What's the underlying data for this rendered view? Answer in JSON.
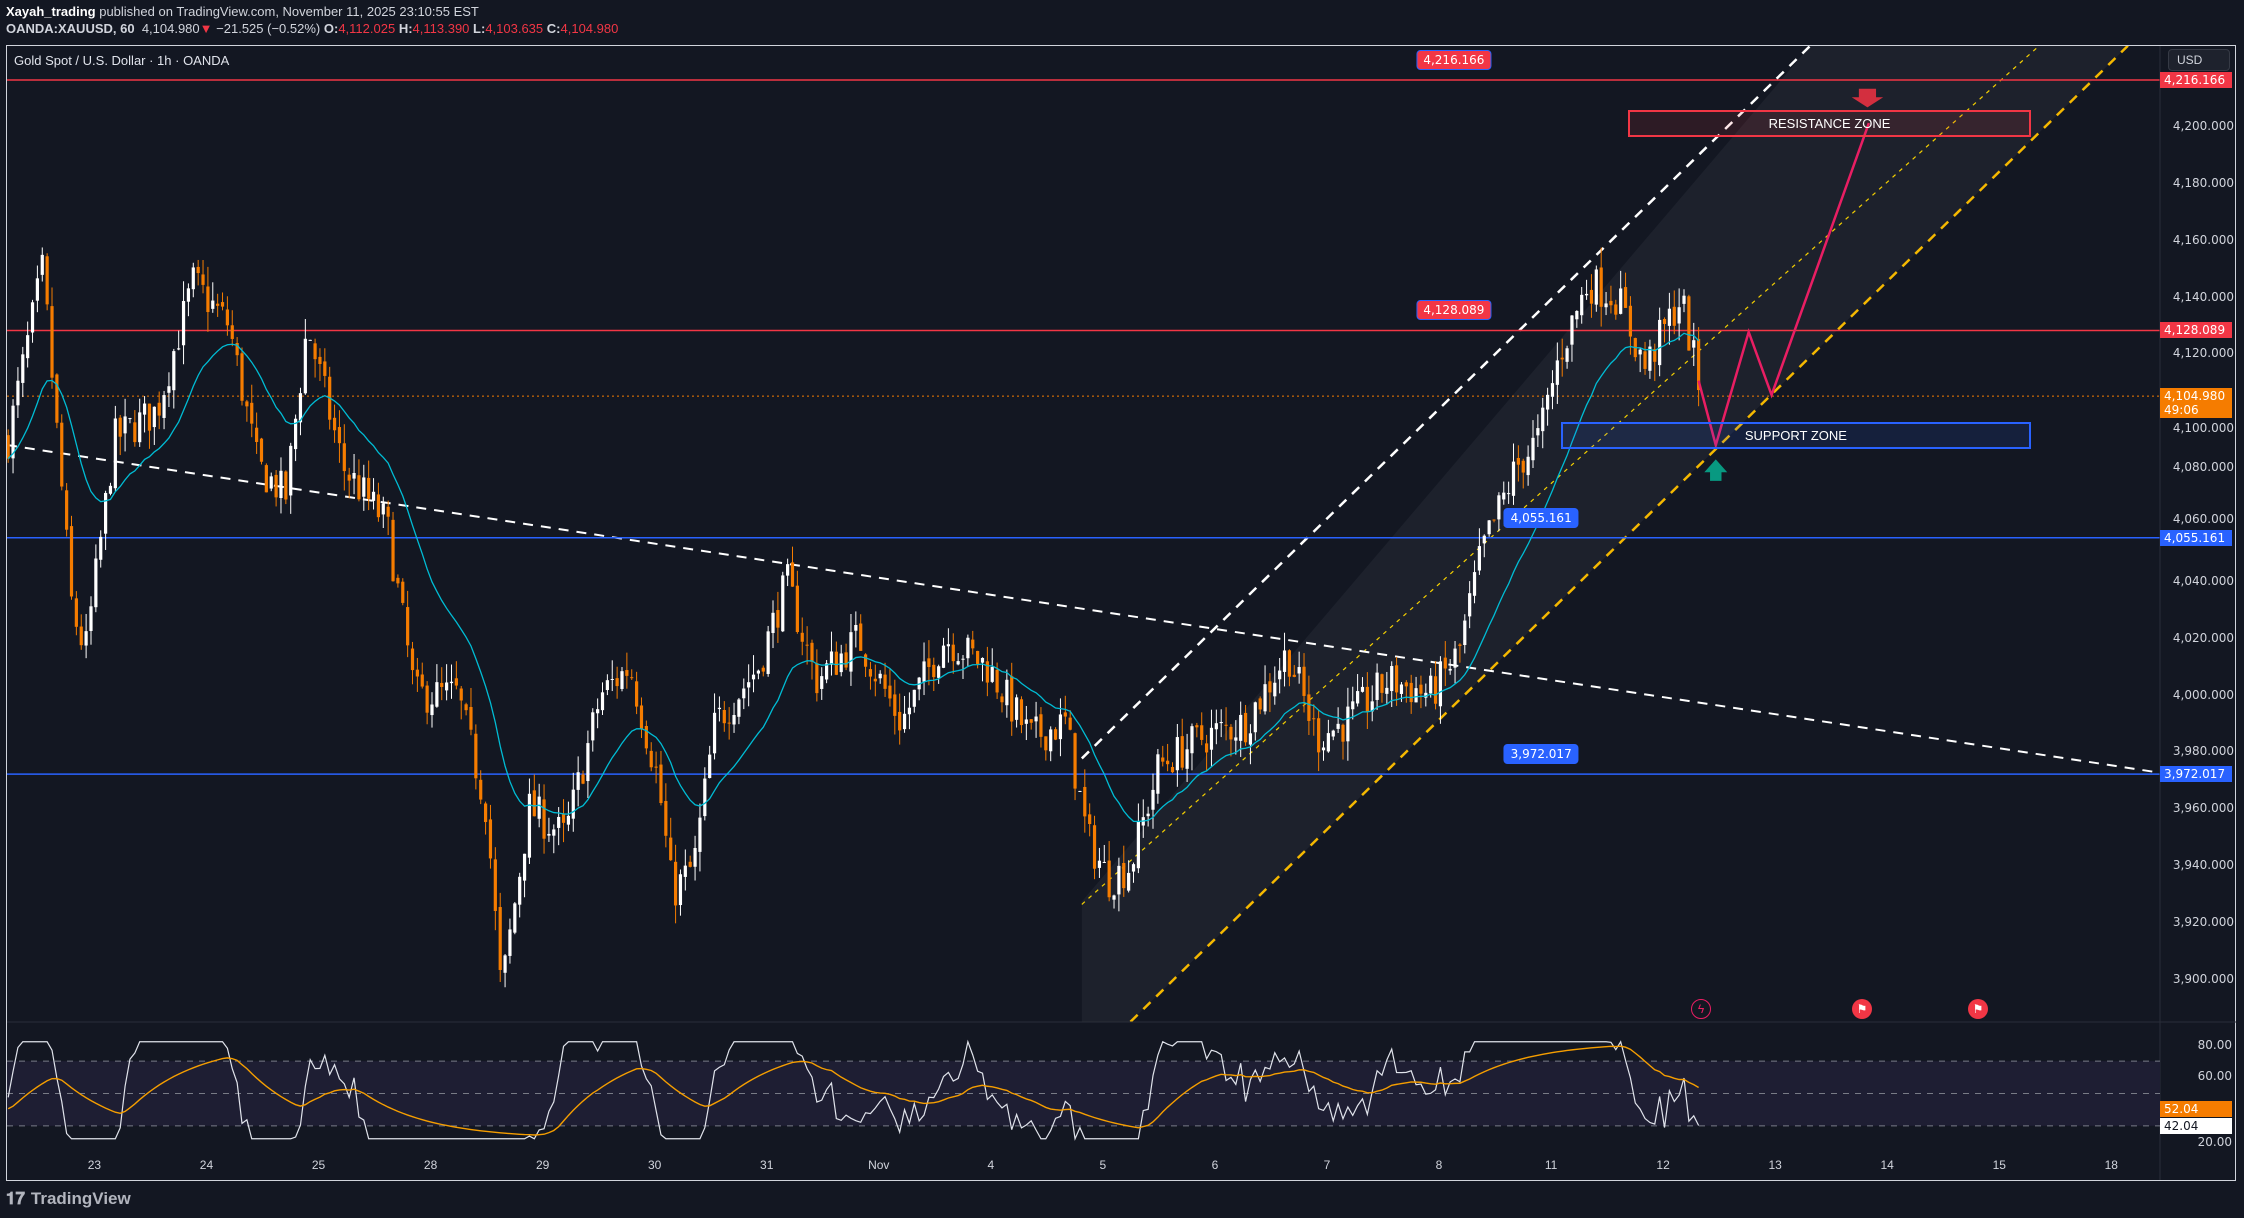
{
  "header": {
    "author": "Xayah_trading",
    "published": "published on TradingView.com, November 11, 2025 23:10:55 EST",
    "symbol": "OANDA:XAUUSD, 60",
    "last": "4,104.980",
    "change": "−21.525 (−0.52%)",
    "o_label": "O:",
    "o": "4,112.025",
    "h_label": "H:",
    "h": "4,113.390",
    "l_label": "L:",
    "l": "4,103.635",
    "c_label": "C:",
    "c": "4,104.980"
  },
  "chart": {
    "title": "Gold Spot / U.S. Dollar · 1h · OANDA",
    "currency": "USD",
    "price_ticks": [
      "4,200.000",
      "4,180.000",
      "4,160.000",
      "4,140.000",
      "4,120.000",
      "4,100.000",
      "4,080.000",
      "4,060.000",
      "4,040.000",
      "4,020.000",
      "4,000.000",
      "3,980.000",
      "3,960.000",
      "3,940.000",
      "3,920.000",
      "3,900.000"
    ],
    "price_tick_values": [
      4200,
      4180,
      4160,
      4140,
      4120,
      4100,
      4080,
      4060,
      4040,
      4020,
      4000,
      3980,
      3960,
      3940,
      3920,
      3900
    ],
    "time_labels": [
      "23",
      "24",
      "25",
      "28",
      "29",
      "30",
      "31",
      "Nov",
      "4",
      "5",
      "6",
      "7",
      "8",
      "11",
      "12",
      "13",
      "14",
      "15",
      "18"
    ],
    "levels": [
      {
        "price": 4216.166,
        "label": "4,216.166",
        "color": "#f23645"
      },
      {
        "price": 4128.089,
        "label": "4,128.089",
        "color": "#f23645"
      },
      {
        "price": 4055.161,
        "label": "4,055.161",
        "color": "#2962ff"
      },
      {
        "price": 3972.017,
        "label": "3,972.017",
        "color": "#2962ff"
      }
    ],
    "current_price": {
      "price": 4104.98,
      "label": "4,104.980",
      "countdown": "49:06",
      "color": "#f57c00"
    },
    "resistance_zone": {
      "label": "RESISTANCE ZONE",
      "color": "#f23645"
    },
    "support_zone": {
      "label": "SUPPORT ZONE",
      "color": "#2962ff"
    },
    "colors": {
      "up": "#ffffff",
      "down": "#f57c00",
      "ema": "#00bcd4",
      "projection": "#e91e63"
    },
    "price_path": [
      [
        -0.77,
        4090
      ],
      [
        -0.46,
        4150
      ],
      [
        -0.2,
        4030
      ],
      [
        -0.08,
        4015
      ],
      [
        0.18,
        4090
      ],
      [
        0.56,
        4100
      ],
      [
        0.88,
        4145
      ],
      [
        1.2,
        4130
      ],
      [
        1.46,
        4080
      ],
      [
        1.71,
        4070
      ],
      [
        1.9,
        4130
      ],
      [
        2.22,
        4080
      ],
      [
        2.61,
        4060
      ],
      [
        2.86,
        4000
      ],
      [
        3.24,
        4000
      ],
      [
        3.5,
        3960
      ],
      [
        3.63,
        3895
      ],
      [
        3.88,
        3960
      ],
      [
        4.2,
        3950
      ],
      [
        4.52,
        4000
      ],
      [
        4.78,
        4010
      ],
      [
        5.03,
        3970
      ],
      [
        5.16,
        3930
      ],
      [
        5.35,
        3940
      ],
      [
        5.54,
        3990
      ],
      [
        5.93,
        4010
      ],
      [
        6.18,
        4040
      ],
      [
        6.44,
        4005
      ],
      [
        6.82,
        4020
      ],
      [
        7.2,
        3990
      ],
      [
        7.59,
        4020
      ],
      [
        7.97,
        4010
      ],
      [
        8.35,
        3985
      ],
      [
        8.67,
        3990
      ],
      [
        8.86,
        3950
      ],
      [
        9.05,
        3935
      ],
      [
        9.25,
        3940
      ],
      [
        9.5,
        3975
      ],
      [
        9.89,
        3985
      ],
      [
        10.27,
        3990
      ],
      [
        10.65,
        4015
      ],
      [
        10.91,
        3985
      ],
      [
        11.16,
        3990
      ],
      [
        11.55,
        4005
      ],
      [
        11.93,
        4000
      ],
      [
        12.18,
        4015
      ],
      [
        12.38,
        4050
      ],
      [
        12.69,
        4080
      ],
      [
        12.89,
        4090
      ],
      [
        13.08,
        4120
      ],
      [
        13.33,
        4145
      ],
      [
        13.59,
        4140
      ],
      [
        13.84,
        4115
      ],
      [
        14.16,
        4140
      ],
      [
        14.34,
        4105
      ]
    ]
  },
  "rsi": {
    "ticks": [
      "80.00",
      "60.00",
      "20.00"
    ],
    "value": "52.04",
    "value2": "42.04"
  },
  "brand": {
    "logo": "TradingView"
  }
}
